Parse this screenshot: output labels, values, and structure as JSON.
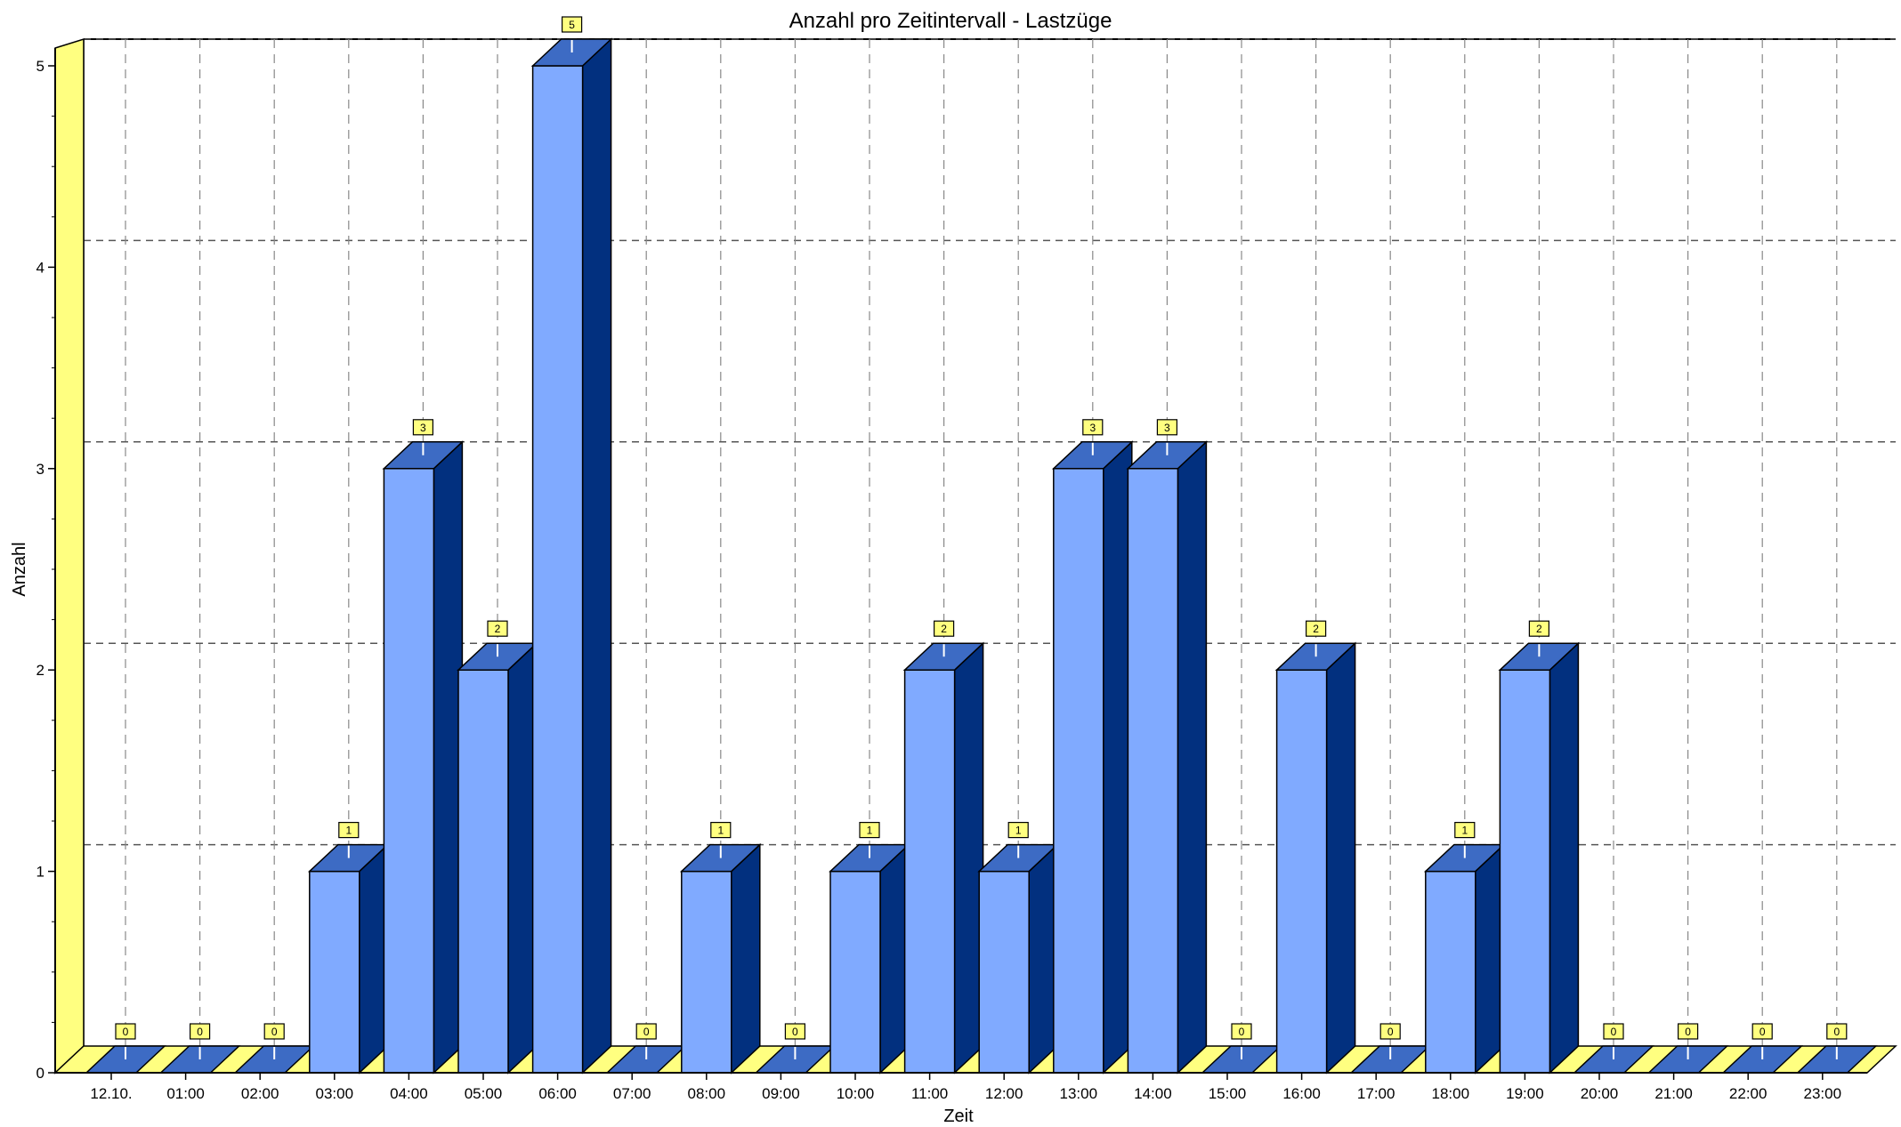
{
  "chart_data": {
    "type": "bar",
    "title": "Anzahl pro Zeitintervall - Lastzüge",
    "xlabel": "Zeit",
    "ylabel": "Anzahl",
    "categories": [
      "12.10.",
      "01:00",
      "02:00",
      "03:00",
      "04:00",
      "05:00",
      "06:00",
      "07:00",
      "08:00",
      "09:00",
      "10:00",
      "11:00",
      "12:00",
      "13:00",
      "14:00",
      "15:00",
      "16:00",
      "17:00",
      "18:00",
      "19:00",
      "20:00",
      "21:00",
      "22:00",
      "23:00"
    ],
    "values": [
      0,
      0,
      0,
      1,
      3,
      2,
      5,
      0,
      1,
      0,
      1,
      2,
      1,
      3,
      3,
      0,
      2,
      0,
      1,
      2,
      0,
      0,
      0,
      0
    ],
    "ylim": [
      0,
      5
    ],
    "yticks": [
      "0",
      "1",
      "2",
      "3",
      "4",
      "5"
    ],
    "grid": true,
    "three_d": true,
    "data_labels": true,
    "colors": {
      "bar_front": "#80aaff",
      "bar_top": "#3d6bc4",
      "bar_side": "#02307f",
      "wall": "#ffff80",
      "label_box": "#ffff80"
    }
  }
}
